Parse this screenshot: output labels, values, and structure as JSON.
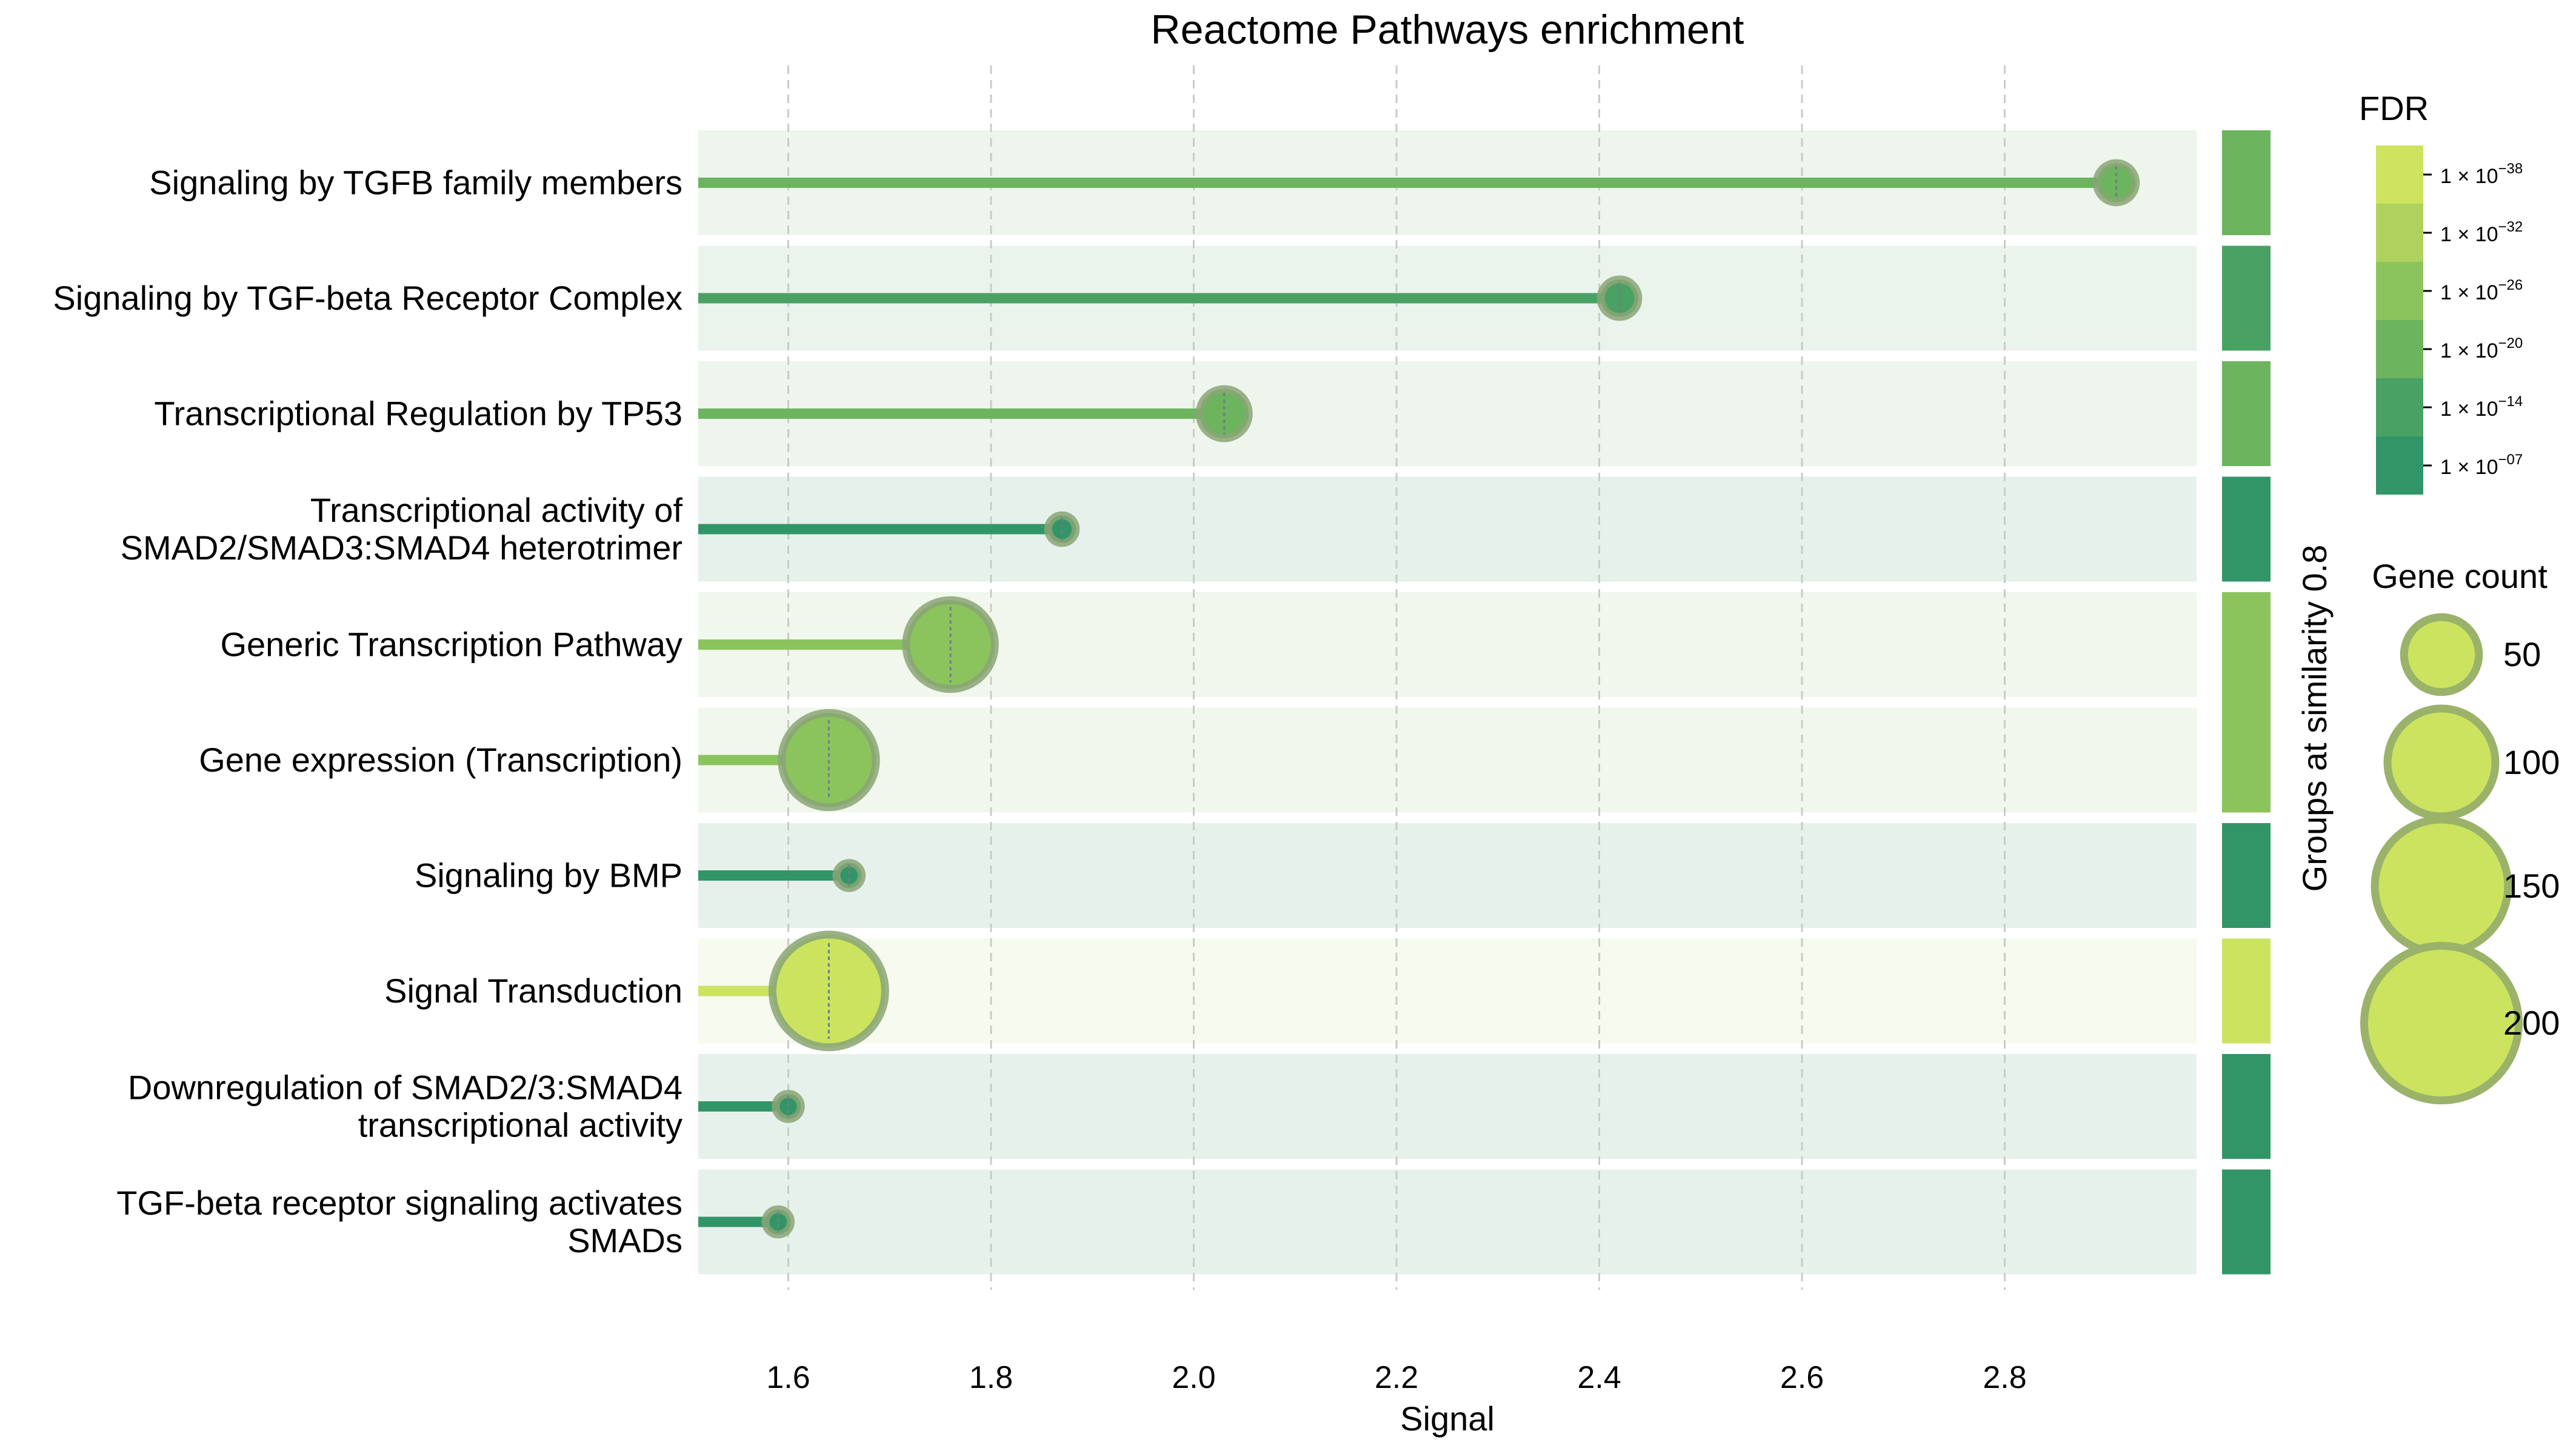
{
  "chart_data": {
    "type": "lollipop",
    "title": "Reactome Pathways enrichment",
    "xlabel": "Signal",
    "xlim": [
      1.51,
      2.99
    ],
    "xticks": [
      "1.6",
      "1.8",
      "2.0",
      "2.2",
      "2.4",
      "2.6",
      "2.8"
    ],
    "xtick_values": [
      1.6,
      1.8,
      2.0,
      2.2,
      2.4,
      2.6,
      2.8
    ],
    "group_axis_label": "Groups at similarity 0.8",
    "pathways": [
      {
        "label": [
          "Signaling by TGFB family members"
        ],
        "signal": 2.91,
        "gene_count": 12,
        "color": "#6cb45e",
        "band": "#eef5ec"
      },
      {
        "label": [
          "Signaling by TGF-beta Receptor Complex"
        ],
        "signal": 2.42,
        "gene_count": 11,
        "color": "#4aa164",
        "band": "#eaf3ec"
      },
      {
        "label": [
          "Transcriptional Regulation by TP53"
        ],
        "signal": 2.03,
        "gene_count": 19,
        "color": "#6cb45e",
        "band": "#eef5ec"
      },
      {
        "label": [
          "Transcriptional activity of",
          "SMAD2/SMAD3:SMAD4 heterotrimer"
        ],
        "signal": 1.87,
        "gene_count": 6,
        "color": "#329568",
        "band": "#e7f1ec"
      },
      {
        "label": [
          "Generic Transcription Pathway"
        ],
        "signal": 1.76,
        "gene_count": 62,
        "color": "#8bc45d",
        "band": "#f1f7ec"
      },
      {
        "label": [
          "Gene expression (Transcription)"
        ],
        "signal": 1.64,
        "gene_count": 70,
        "color": "#8bc45d",
        "band": "#f1f7ec"
      },
      {
        "label": [
          "Signaling by BMP"
        ],
        "signal": 1.66,
        "gene_count": 5,
        "color": "#329568",
        "band": "#e7f1ec"
      },
      {
        "label": [
          "Signal Transduction"
        ],
        "signal": 1.64,
        "gene_count": 100,
        "color": "#cbe35f",
        "band": "#f7faee"
      },
      {
        "label": [
          "Downregulation of SMAD2/3:SMAD4",
          "transcriptional activity"
        ],
        "signal": 1.6,
        "gene_count": 5,
        "color": "#329568",
        "band": "#e7f1ec"
      },
      {
        "label": [
          "TGF-beta receptor signaling activates",
          "SMADs"
        ],
        "signal": 1.59,
        "gene_count": 5,
        "color": "#329568",
        "band": "#e7f1ec"
      }
    ],
    "fdr_legend": {
      "title": "FDR",
      "ticks": [
        {
          "base": "1 × 10",
          "exp": "−38"
        },
        {
          "base": "1 × 10",
          "exp": "−32"
        },
        {
          "base": "1 × 10",
          "exp": "−26"
        },
        {
          "base": "1 × 10",
          "exp": "−20"
        },
        {
          "base": "1 × 10",
          "exp": "−14"
        },
        {
          "base": "1 × 10",
          "exp": "−07"
        }
      ],
      "colors": [
        "#cfe35e",
        "#aed25d",
        "#8bc45d",
        "#6cb45e",
        "#4aa164",
        "#329568"
      ]
    },
    "gene_count_legend": {
      "title": "Gene count",
      "values": [
        50,
        100,
        150,
        200
      ],
      "labels": [
        "50",
        "100",
        "150",
        "200"
      ],
      "fill": "#cbe35f",
      "stroke": "#9bb26a"
    }
  }
}
